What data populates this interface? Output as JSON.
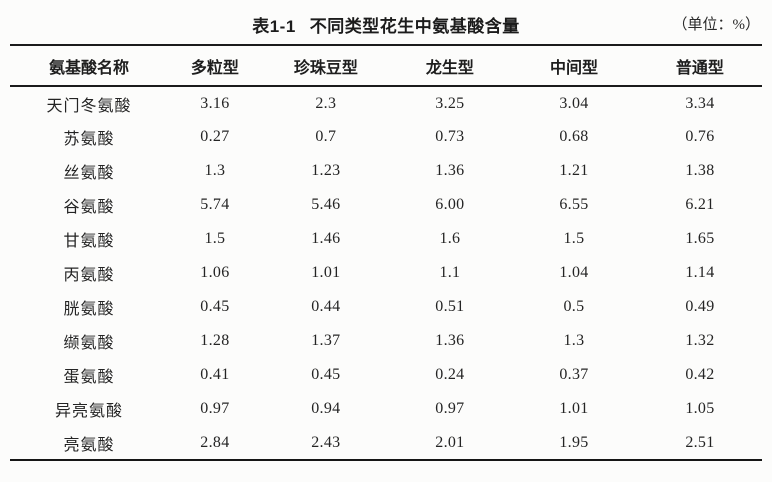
{
  "caption": {
    "title_no": "表1-1",
    "title_text": "不同类型花生中氨基酸含量",
    "unit_label": "（单位：%）"
  },
  "table": {
    "columns": [
      "氨基酸名称",
      "多粒型",
      "珍珠豆型",
      "龙生型",
      "中间型",
      "普通型"
    ],
    "rows": [
      {
        "name": "天门冬氨酸",
        "values": [
          "3.16",
          "2.3",
          "3.25",
          "3.04",
          "3.34"
        ]
      },
      {
        "name": "苏氨酸",
        "values": [
          "0.27",
          "0.7",
          "0.73",
          "0.68",
          "0.76"
        ]
      },
      {
        "name": "丝氨酸",
        "values": [
          "1.3",
          "1.23",
          "1.36",
          "1.21",
          "1.38"
        ]
      },
      {
        "name": "谷氨酸",
        "values": [
          "5.74",
          "5.46",
          "6.00",
          "6.55",
          "6.21"
        ]
      },
      {
        "name": "甘氨酸",
        "values": [
          "1.5",
          "1.46",
          "1.6",
          "1.5",
          "1.65"
        ]
      },
      {
        "name": "丙氨酸",
        "values": [
          "1.06",
          "1.01",
          "1.1",
          "1.04",
          "1.14"
        ]
      },
      {
        "name": "胱氨酸",
        "values": [
          "0.45",
          "0.44",
          "0.51",
          "0.5",
          "0.49"
        ]
      },
      {
        "name": "缬氨酸",
        "values": [
          "1.28",
          "1.37",
          "1.36",
          "1.3",
          "1.32"
        ]
      },
      {
        "name": "蛋氨酸",
        "values": [
          "0.41",
          "0.45",
          "0.24",
          "0.37",
          "0.42"
        ]
      },
      {
        "name": "异亮氨酸",
        "values": [
          "0.97",
          "0.94",
          "0.97",
          "1.01",
          "1.05"
        ]
      },
      {
        "name": "亮氨酸",
        "values": [
          "2.84",
          "2.43",
          "2.01",
          "1.95",
          "2.51"
        ]
      }
    ]
  },
  "colors": {
    "background": "#fcfcfb",
    "text": "#242424",
    "rule": "#1b1b1b"
  }
}
